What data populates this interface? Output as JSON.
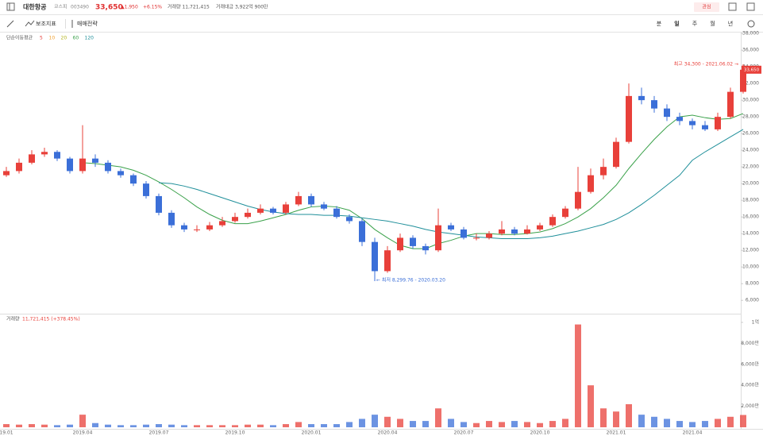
{
  "header": {
    "name": "대한항공",
    "market": "코스피",
    "code": "003490",
    "price": "33,650",
    "change": "▲1,950",
    "rate": "+6.15%",
    "volume": "거래량 11,721,415",
    "amount": "거래대금 3,922억 900만",
    "favorite": "관심"
  },
  "toolbar": {
    "indicator": "보조지표",
    "strategy": "매매전략",
    "periods": [
      "분",
      "일",
      "주",
      "월",
      "년"
    ]
  },
  "chart_data": {
    "type": "candlestick",
    "ma_title": "단순이동평균",
    "other_ma": [
      {
        "name": "5",
        "color": "#e8403a"
      },
      {
        "name": "10",
        "color": "#f0a030"
      },
      {
        "name": "20",
        "color": "#b5b520"
      }
    ],
    "up_color": "#e8403a",
    "down_color": "#3b6fd8",
    "categories": [
      "19.01",
      null,
      null,
      null,
      null,
      null,
      "2019.04",
      null,
      null,
      null,
      null,
      null,
      "2019.07",
      null,
      null,
      null,
      null,
      null,
      "2019.10",
      null,
      null,
      null,
      null,
      null,
      "2020.01",
      null,
      null,
      null,
      null,
      null,
      "2020.04",
      null,
      null,
      null,
      null,
      null,
      "2020.07",
      null,
      null,
      null,
      null,
      null,
      "2020.10",
      null,
      null,
      null,
      null,
      null,
      "2021.01",
      null,
      null,
      null,
      null,
      null,
      "2021.04",
      null,
      null,
      null,
      null
    ],
    "open": [
      21000,
      21500,
      22500,
      23500,
      23800,
      23000,
      21500,
      23000,
      22500,
      21500,
      21000,
      20000,
      18500,
      16500,
      15000,
      14500,
      14500,
      15000,
      15500,
      16000,
      16500,
      17000,
      16500,
      17500,
      18500,
      17500,
      17000,
      16000,
      15500,
      13000,
      9500,
      12000,
      13500,
      12500,
      12000,
      15000,
      14500,
      13500,
      13500,
      14000,
      14500,
      14000,
      14500,
      15000,
      16000,
      17000,
      19000,
      21000,
      22000,
      25000,
      30500,
      30000,
      29000,
      28000,
      27500,
      27000,
      26500,
      28000,
      31000
    ],
    "high": [
      22000,
      23000,
      24000,
      24300,
      24000,
      23200,
      27000,
      23500,
      22800,
      21800,
      21200,
      20300,
      18800,
      16800,
      15300,
      15000,
      15400,
      16000,
      16500,
      17000,
      17500,
      17200,
      17800,
      19000,
      18800,
      17800,
      17300,
      16300,
      15800,
      13500,
      12500,
      14000,
      13800,
      12800,
      17000,
      15300,
      14800,
      14000,
      14300,
      15500,
      14800,
      15000,
      15300,
      16300,
      17300,
      22000,
      21800,
      23000,
      25500,
      32000,
      31500,
      30500,
      29500,
      28500,
      27800,
      27500,
      28500,
      31500,
      34300
    ],
    "low": [
      20800,
      21200,
      22300,
      23200,
      22700,
      21200,
      21200,
      22000,
      21200,
      20700,
      19700,
      18200,
      16200,
      14700,
      14200,
      14200,
      14300,
      14800,
      15300,
      15800,
      16300,
      16300,
      16300,
      17300,
      17200,
      16800,
      15800,
      15200,
      12500,
      8299.76,
      9300,
      11800,
      12200,
      11500,
      11800,
      14300,
      13300,
      13200,
      13300,
      13800,
      13800,
      13900,
      14300,
      14800,
      15800,
      16800,
      18800,
      20500,
      21800,
      24800,
      29500,
      28500,
      27500,
      27000,
      26500,
      26300,
      26300,
      27800,
      30800
    ],
    "close": [
      21500,
      22500,
      23500,
      23800,
      23000,
      21500,
      23000,
      22500,
      21500,
      21000,
      20000,
      18500,
      16500,
      15000,
      14500,
      14500,
      15000,
      15500,
      16000,
      16500,
      17000,
      16500,
      17500,
      18500,
      17500,
      17000,
      16000,
      15500,
      13000,
      9500,
      12000,
      13500,
      12500,
      12000,
      15000,
      14500,
      13500,
      13500,
      14000,
      14500,
      14000,
      14500,
      15000,
      16000,
      17000,
      19000,
      21000,
      22000,
      25000,
      30500,
      30000,
      29000,
      28000,
      27500,
      27000,
      26500,
      28000,
      31000,
      33650
    ],
    "series": [
      {
        "name": "60",
        "color": "#3aa14a",
        "values": [
          null,
          null,
          null,
          null,
          null,
          null,
          22500,
          22400,
          22200,
          22000,
          21600,
          21000,
          20200,
          19300,
          18300,
          17200,
          16300,
          15600,
          15200,
          15200,
          15500,
          15900,
          16300,
          16800,
          17200,
          17300,
          17200,
          16800,
          15800,
          14500,
          13500,
          12600,
          12200,
          12200,
          12800,
          13200,
          13700,
          14000,
          14000,
          13900,
          13900,
          14000,
          14200,
          14600,
          15200,
          16000,
          17000,
          18300,
          19800,
          21800,
          23600,
          25300,
          26800,
          28000,
          28200,
          27900,
          27700,
          27800,
          28400
        ]
      },
      {
        "name": "120",
        "color": "#1f8f9a",
        "values": [
          null,
          null,
          null,
          null,
          null,
          null,
          null,
          null,
          null,
          null,
          null,
          null,
          20100,
          20000,
          19700,
          19300,
          18800,
          18300,
          17800,
          17300,
          16900,
          16600,
          16400,
          16300,
          16300,
          16200,
          16200,
          16100,
          15900,
          15700,
          15500,
          15200,
          14900,
          14500,
          14200,
          14000,
          13800,
          13600,
          13500,
          13400,
          13400,
          13400,
          13500,
          13700,
          14000,
          14300,
          14700,
          15100,
          15700,
          16500,
          17500,
          18600,
          19800,
          21000,
          22800,
          23800,
          24700,
          25600,
          26500
        ]
      }
    ],
    "ylim": [
      4400,
      38200
    ],
    "yticks": [
      {
        "value": 6000,
        "label": "6,000"
      },
      {
        "value": 8000,
        "label": "8,000"
      },
      {
        "value": 10000,
        "label": "10,000"
      },
      {
        "value": 12000,
        "label": "12,000"
      },
      {
        "value": 14000,
        "label": "14,000"
      },
      {
        "value": 16000,
        "label": "16,000"
      },
      {
        "value": 18000,
        "label": "18,000"
      },
      {
        "value": 20000,
        "label": "20,000"
      },
      {
        "value": 22000,
        "label": "22,000"
      },
      {
        "value": 24000,
        "label": "24,000"
      },
      {
        "value": 26000,
        "label": "26,000"
      },
      {
        "value": 28000,
        "label": "28,000"
      },
      {
        "value": 30000,
        "label": "30,000"
      },
      {
        "value": 32000,
        "label": "32,000"
      },
      {
        "value": 34000,
        "label": "34,000"
      },
      {
        "value": 36000,
        "label": "36,000"
      },
      {
        "value": 38000,
        "label": "38,000"
      }
    ],
    "annotations": {
      "high": "최고 34,300 - 2021.06.02 →",
      "low": "← 최저 8,299.76 - 2020.03.20"
    },
    "volume_title": "거래량",
    "volume_label": "11,721,415 (+378.45%)",
    "volume": [
      3000000,
      2500000,
      3000000,
      2500000,
      2000000,
      2500000,
      12000000,
      4000000,
      2500000,
      2000000,
      2000000,
      2500000,
      3000000,
      2500000,
      2000000,
      2000000,
      2000000,
      2000000,
      2000000,
      2500000,
      2500000,
      2000000,
      3000000,
      5000000,
      3000000,
      3000000,
      3000000,
      5000000,
      8000000,
      12000000,
      10000000,
      8000000,
      6000000,
      6000000,
      18000000,
      8000000,
      5000000,
      4000000,
      6000000,
      5000000,
      6000000,
      5000000,
      4000000,
      6000000,
      8000000,
      98000000,
      40000000,
      18000000,
      15000000,
      22000000,
      12000000,
      10000000,
      8000000,
      6000000,
      5000000,
      6000000,
      8000000,
      10000000,
      11721415
    ],
    "vlim": [
      0,
      106000000
    ],
    "vticks": [
      {
        "value": 20000000,
        "label": "2,000만"
      },
      {
        "value": 40000000,
        "label": "4,000만"
      },
      {
        "value": 60000000,
        "label": "6,000만"
      },
      {
        "value": 80000000,
        "label": "8,000만"
      },
      {
        "value": 100000000,
        "label": "1억"
      }
    ]
  }
}
